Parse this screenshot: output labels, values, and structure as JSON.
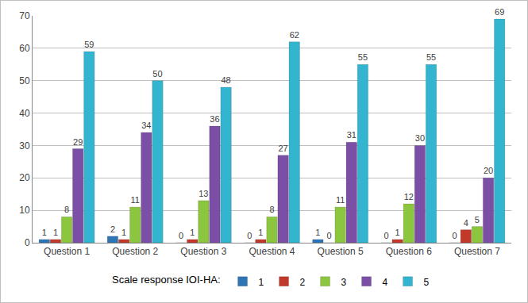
{
  "chart_data": {
    "type": "bar",
    "categories": [
      "Question 1",
      "Question 2",
      "Question 3",
      "Question 4",
      "Question 5",
      "Question 6",
      "Question 7"
    ],
    "series": [
      {
        "name": "1",
        "color": "#2e75b6",
        "values": [
          1,
          2,
          0,
          0,
          1,
          0,
          0
        ]
      },
      {
        "name": "2",
        "color": "#c0392b",
        "values": [
          1,
          1,
          1,
          1,
          0,
          1,
          4
        ]
      },
      {
        "name": "3",
        "color": "#8cc63e",
        "values": [
          8,
          11,
          13,
          8,
          11,
          12,
          5
        ]
      },
      {
        "name": "4",
        "color": "#7b4fa6",
        "values": [
          29,
          34,
          36,
          27,
          31,
          30,
          20
        ]
      },
      {
        "name": "5",
        "color": "#33b5d0",
        "values": [
          59,
          50,
          48,
          62,
          55,
          55,
          69
        ]
      }
    ],
    "legend_title": "Scale response IOI-HA:",
    "ylim": [
      0,
      70
    ],
    "yticks": [
      0,
      10,
      20,
      30,
      40,
      50,
      60,
      70
    ],
    "grid": true,
    "legend": "bottom",
    "data_labels": true
  }
}
